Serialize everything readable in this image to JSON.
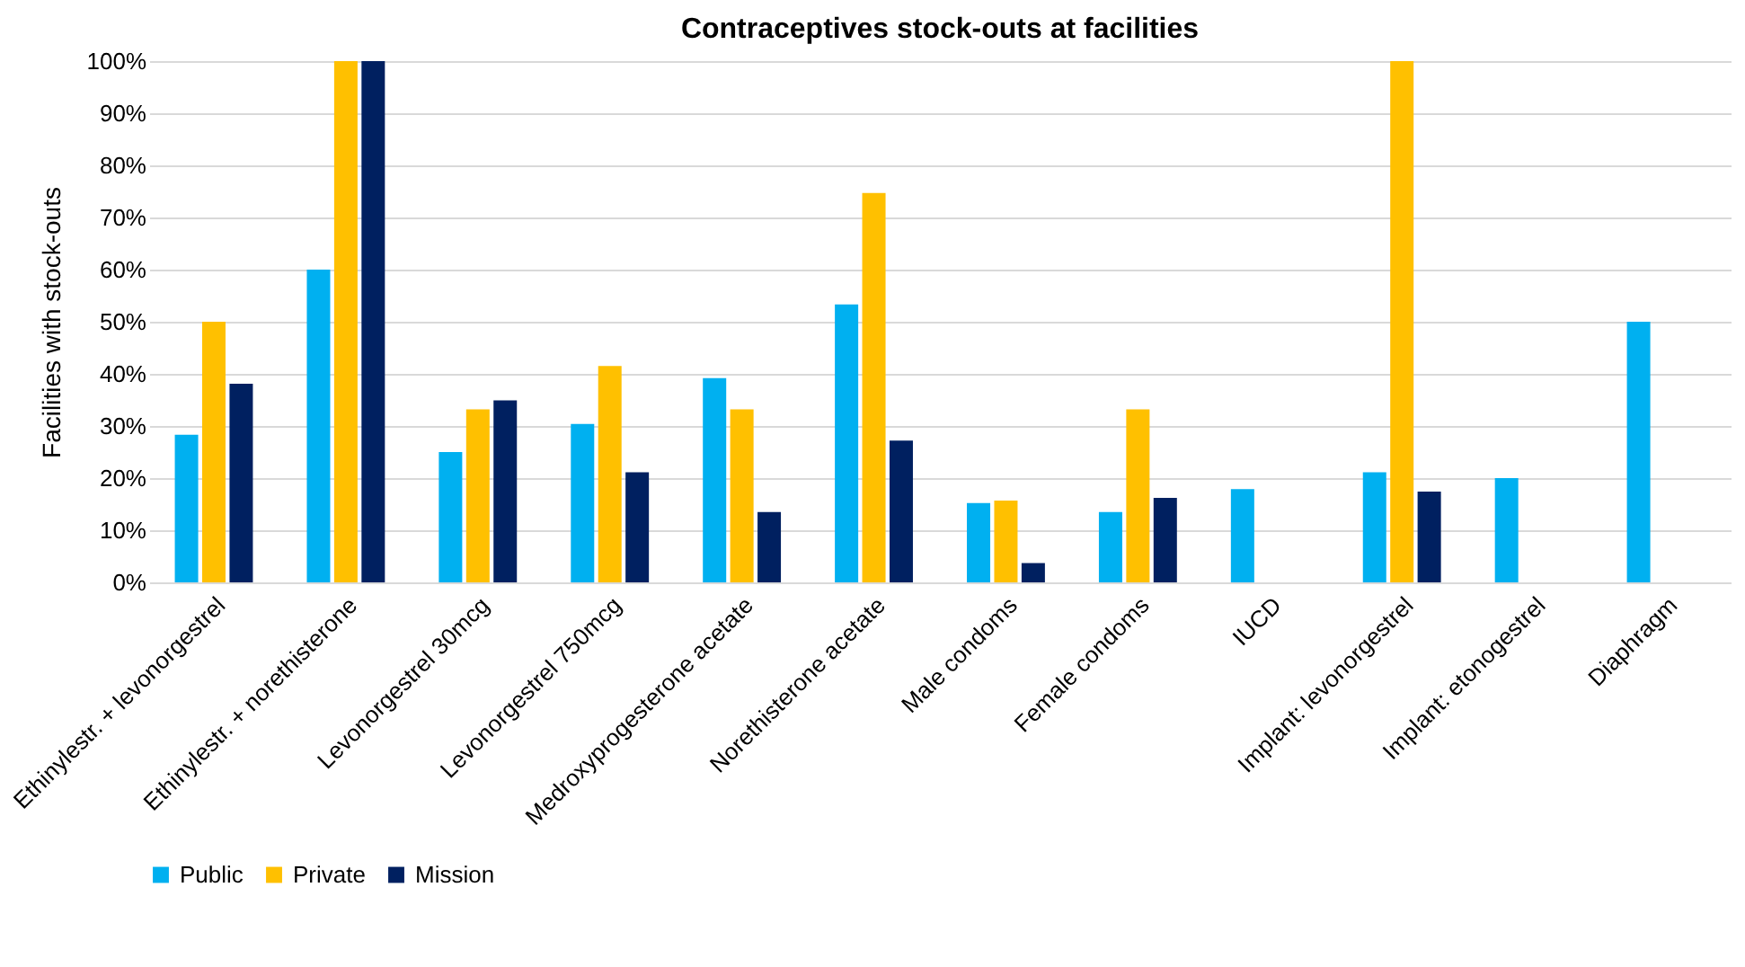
{
  "chart_data": {
    "type": "bar",
    "title": "Contraceptives stock-outs at facilities",
    "ylabel": "Facilities with stock-outs",
    "categories": [
      "Ethinylestr. + levonorgestrel",
      "Ethinylestr. + norethisterone",
      "Levonorgestrel 30mcg",
      "Levonorgestrel 750mcg",
      "Medroxyprogesterone acetate",
      "Norethisterone acetate",
      "Male condoms",
      "Female condoms",
      "IUCD",
      "Implant: levonorgestrel",
      "Implant: etonogestrel",
      "Diaphragm"
    ],
    "series": [
      {
        "name": "Public",
        "color": "#00b0f0",
        "values": [
          28.3,
          60,
          25,
          30.4,
          39.2,
          53.3,
          15.2,
          13.5,
          17.9,
          21.1,
          20,
          50
        ]
      },
      {
        "name": "Private",
        "color": "#ffc000",
        "values": [
          50,
          100,
          33.2,
          41.5,
          33.2,
          74.7,
          15.7,
          33.2,
          null,
          100,
          null,
          null
        ]
      },
      {
        "name": "Mission",
        "color": "#002060",
        "values": [
          38.1,
          100,
          34.9,
          21.1,
          13.5,
          27.2,
          3.7,
          16.2,
          null,
          17.4,
          null,
          null
        ]
      }
    ],
    "ylim": [
      0,
      100
    ],
    "yticks": [
      {
        "value": 0,
        "label": "0%"
      },
      {
        "value": 10,
        "label": "10%"
      },
      {
        "value": 20,
        "label": "20%"
      },
      {
        "value": 30,
        "label": "30%"
      },
      {
        "value": 40,
        "label": "40%"
      },
      {
        "value": 50,
        "label": "50%"
      },
      {
        "value": 60,
        "label": "60%"
      },
      {
        "value": 70,
        "label": "70%"
      },
      {
        "value": 80,
        "label": "80%"
      },
      {
        "value": 90,
        "label": "90%"
      },
      {
        "value": 100,
        "label": "100%"
      }
    ],
    "grid": "y",
    "legend": "bottom"
  }
}
